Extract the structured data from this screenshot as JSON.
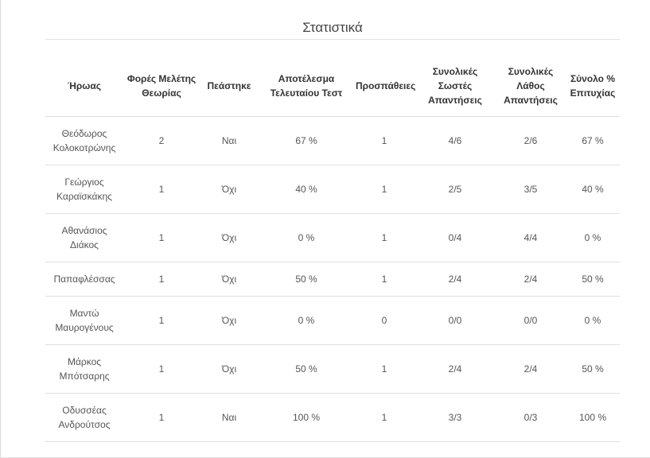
{
  "page": {
    "title": "Στατιστικά"
  },
  "table": {
    "headers": [
      "Ήρωας",
      "Φορές Μελέτης Θεωρίας",
      "Πεάστηκε",
      "Αποτέλεσμα Τελευταίου Τεστ",
      "Προσπάθειες",
      "Συνολικές Σωστές Απαντήσεις",
      "Συνολικές Λάθος Απαντήσεις",
      "Σύνολο % Επιτυχίας"
    ],
    "rows": [
      {
        "hero": "Θεόδωρος Κολοκοτρώνης",
        "theory_views": "2",
        "passed": "Ναι",
        "last_test": "67 %",
        "attempts": "1",
        "correct": "4/6",
        "wrong": "2/6",
        "success": "67 %"
      },
      {
        "hero": "Γεώργιος Καραϊσκάκης",
        "theory_views": "1",
        "passed": "Όχι",
        "last_test": "40 %",
        "attempts": "1",
        "correct": "2/5",
        "wrong": "3/5",
        "success": "40 %"
      },
      {
        "hero": "Αθανάσιος Διάκος",
        "theory_views": "1",
        "passed": "Όχι",
        "last_test": "0 %",
        "attempts": "1",
        "correct": "0/4",
        "wrong": "4/4",
        "success": "0 %"
      },
      {
        "hero": "Παπαφλέσσας",
        "theory_views": "1",
        "passed": "Όχι",
        "last_test": "50 %",
        "attempts": "1",
        "correct": "2/4",
        "wrong": "2/4",
        "success": "50 %"
      },
      {
        "hero": "Μαντώ Μαυρογένους",
        "theory_views": "1",
        "passed": "Όχι",
        "last_test": "0 %",
        "attempts": "0",
        "correct": "0/0",
        "wrong": "0/0",
        "success": "0 %"
      },
      {
        "hero": "Μάρκος Μπότσαρης",
        "theory_views": "1",
        "passed": "Όχι",
        "last_test": "50 %",
        "attempts": "1",
        "correct": "2/4",
        "wrong": "2/4",
        "success": "50 %"
      },
      {
        "hero": "Οδυσσέας Ανδρούτσος",
        "theory_views": "1",
        "passed": "Ναι",
        "last_test": "100 %",
        "attempts": "1",
        "correct": "3/3",
        "wrong": "0/3",
        "success": "100 %"
      }
    ]
  }
}
